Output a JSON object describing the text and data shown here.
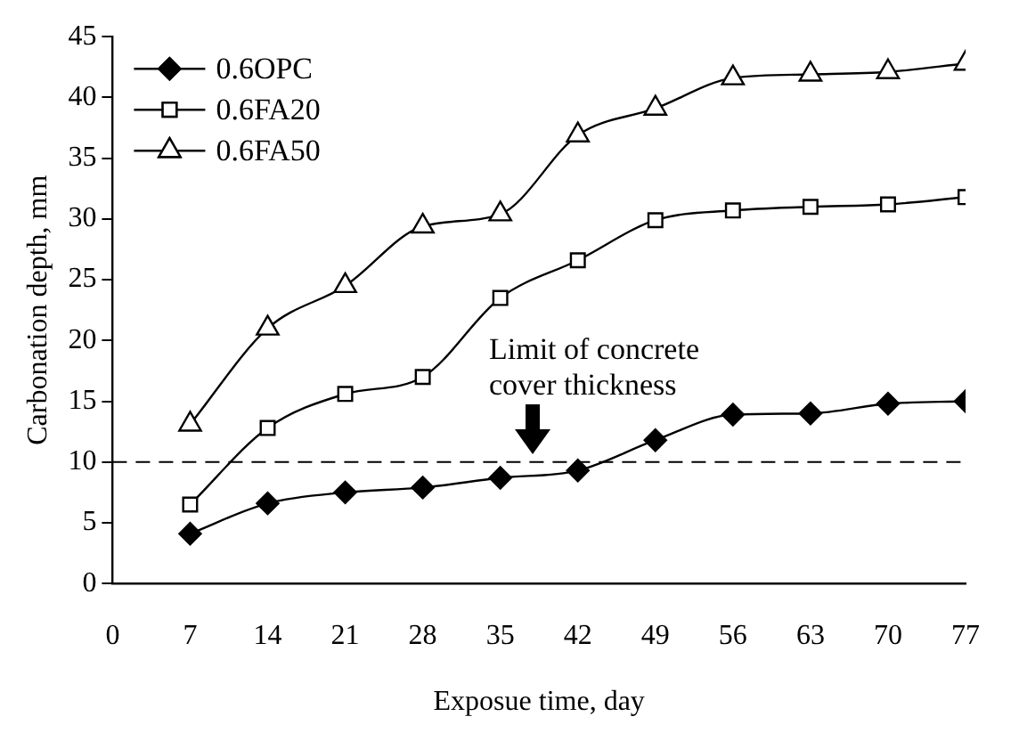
{
  "chart_data": {
    "type": "line",
    "xlabel": "Exposue time, day",
    "ylabel": "Carbonation depth, mm",
    "x": [
      7,
      14,
      21,
      28,
      35,
      42,
      49,
      56,
      63,
      70,
      77
    ],
    "xlim": [
      0,
      77
    ],
    "xticks": [
      0,
      7,
      14,
      21,
      28,
      35,
      42,
      49,
      56,
      63,
      70,
      77
    ],
    "ylim": [
      0,
      45
    ],
    "yticks": [
      0,
      5,
      10,
      15,
      20,
      25,
      30,
      35,
      40,
      45
    ],
    "grid": false,
    "legend": "top left",
    "series": [
      {
        "name": "0.6OPC",
        "color": "#000000",
        "marker": "diamond",
        "values": [
          4.1,
          6.6,
          7.5,
          7.9,
          8.7,
          9.3,
          11.8,
          13.9,
          14.0,
          14.8,
          15.0
        ]
      },
      {
        "name": "0.6FA20",
        "color": "#000000",
        "marker": "square",
        "values": [
          6.5,
          12.8,
          15.6,
          17.0,
          23.5,
          26.6,
          29.9,
          30.7,
          31.0,
          31.2,
          31.8
        ]
      },
      {
        "name": "0.6FA50",
        "color": "#000000",
        "marker": "triangle",
        "values": [
          13.1,
          21.0,
          24.5,
          29.4,
          30.4,
          36.9,
          39.1,
          41.6,
          41.9,
          42.1,
          42.8
        ]
      }
    ],
    "ref_lines": [
      {
        "axis": "y",
        "value": 10,
        "color": "#000000",
        "line_style": "dashed"
      }
    ],
    "annotations": [
      {
        "text": "Limit of concrete cover thickness",
        "x": 38,
        "y": 10
      }
    ]
  }
}
